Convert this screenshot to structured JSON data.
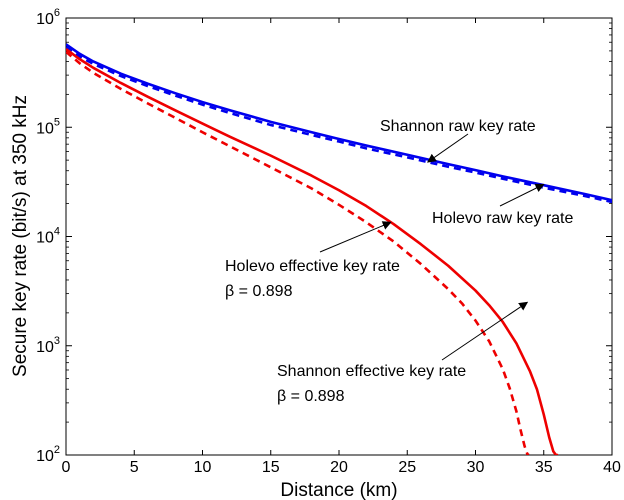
{
  "chart_data": {
    "type": "line",
    "title": "",
    "xlabel": "Distance (km)",
    "ylabel": "Secure key rate (bit/s) at 350 kHz",
    "xlim": [
      0,
      40
    ],
    "ylim": [
      100,
      1000000
    ],
    "yscale": "log",
    "grid": false,
    "legend": "none",
    "x_ticks": [
      "0",
      "5",
      "10",
      "15",
      "20",
      "25",
      "30",
      "35",
      "40"
    ],
    "y_ticks": [
      {
        "base": "10",
        "exp": "2",
        "value": 100
      },
      {
        "base": "10",
        "exp": "3",
        "value": 1000
      },
      {
        "base": "10",
        "exp": "4",
        "value": 10000
      },
      {
        "base": "10",
        "exp": "5",
        "value": 100000
      },
      {
        "base": "10",
        "exp": "6",
        "value": 1000000
      }
    ],
    "series": [
      {
        "name": "Shannon raw key rate",
        "color": "#0000ee",
        "dash": "solid",
        "x": [
          0,
          1,
          2,
          4,
          6,
          8,
          10,
          12,
          15,
          18,
          20,
          22,
          25,
          28,
          30,
          32,
          35,
          38,
          40
        ],
        "y": [
          575000,
          470000,
          400000,
          310000,
          250000,
          205000,
          170000,
          143000,
          112000,
          90000,
          78000,
          68000,
          56000,
          46000,
          40500,
          35500,
          29500,
          24500,
          21500
        ]
      },
      {
        "name": "Holevo raw key rate",
        "color": "#0000ee",
        "dash": "dashed",
        "x": [
          0,
          1,
          2,
          4,
          6,
          8,
          10,
          12,
          15,
          18,
          20,
          22,
          25,
          28,
          30,
          32,
          35,
          38,
          40
        ],
        "y": [
          540000,
          445000,
          380000,
          295000,
          238000,
          195000,
          161000,
          135000,
          105000,
          85000,
          74000,
          64000,
          53000,
          43500,
          38500,
          33800,
          28000,
          23500,
          20700
        ]
      },
      {
        "name": "Shannon effective key rate β = 0.898",
        "color": "#ee0000",
        "dash": "solid",
        "x": [
          0,
          1,
          2,
          4,
          6,
          8,
          10,
          12,
          15,
          18,
          20,
          22,
          24,
          26,
          28,
          30,
          31,
          32,
          33,
          34,
          34.5,
          35,
          35.4,
          35.7,
          35.9,
          36.0,
          36.05
        ],
        "y": [
          520000,
          420000,
          350000,
          255000,
          190000,
          143000,
          108000,
          82000,
          55000,
          36000,
          26500,
          19000,
          13000,
          8500,
          5400,
          3200,
          2350,
          1650,
          1050,
          580,
          400,
          235,
          145,
          108,
          100,
          100,
          100
        ]
      },
      {
        "name": "Holevo effective key rate β = 0.898",
        "color": "#ee0000",
        "dash": "dashed",
        "x": [
          0,
          1,
          2,
          4,
          6,
          8,
          10,
          12,
          15,
          18,
          20,
          22,
          24,
          26,
          28,
          29,
          30,
          31,
          32,
          32.5,
          33,
          33.3,
          33.6,
          33.8,
          33.9
        ],
        "y": [
          490000,
          385000,
          315000,
          225000,
          165000,
          122000,
          90000,
          67000,
          43000,
          27500,
          19500,
          13500,
          9000,
          5600,
          3300,
          2450,
          1700,
          1100,
          610,
          410,
          250,
          170,
          120,
          102,
          100
        ]
      }
    ],
    "annotations": [
      {
        "text": "Shannon raw key rate",
        "target_x": 26.5,
        "target_y": 48000
      },
      {
        "text": "Holevo raw key rate",
        "target_x": 35,
        "target_y": 30000
      },
      {
        "text": "Holevo effective key rate",
        "line2": "β = 0.898",
        "target_x": 23.8,
        "target_y": 13500
      },
      {
        "text": "Shannon effective key rate",
        "line2": "β = 0.898",
        "target_x": 33.8,
        "target_y": 2500
      }
    ]
  }
}
